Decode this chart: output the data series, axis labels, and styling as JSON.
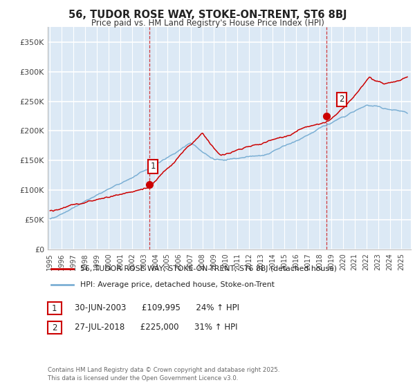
{
  "title": "56, TUDOR ROSE WAY, STOKE-ON-TRENT, ST6 8BJ",
  "subtitle": "Price paid vs. HM Land Registry's House Price Index (HPI)",
  "ylabel_ticks": [
    "£0",
    "£50K",
    "£100K",
    "£150K",
    "£200K",
    "£250K",
    "£300K",
    "£350K"
  ],
  "ytick_vals": [
    0,
    50000,
    100000,
    150000,
    200000,
    250000,
    300000,
    350000
  ],
  "ylim": [
    0,
    375000
  ],
  "xlim_start": 1994.8,
  "xlim_end": 2025.8,
  "sale1_date": 2003.49,
  "sale1_price": 109995,
  "sale2_date": 2018.57,
  "sale2_price": 225000,
  "legend_line1": "56, TUDOR ROSE WAY, STOKE-ON-TRENT, ST6 8BJ (detached house)",
  "legend_line2": "HPI: Average price, detached house, Stoke-on-Trent",
  "table_row1": [
    "1",
    "30-JUN-2003",
    "£109,995",
    "24% ↑ HPI"
  ],
  "table_row2": [
    "2",
    "27-JUL-2018",
    "£225,000",
    "31% ↑ HPI"
  ],
  "footer": "Contains HM Land Registry data © Crown copyright and database right 2025.\nThis data is licensed under the Open Government Licence v3.0.",
  "color_red": "#cc0000",
  "color_blue": "#7bafd4",
  "bg_color": "#dce9f5",
  "background_color": "#ffffff"
}
